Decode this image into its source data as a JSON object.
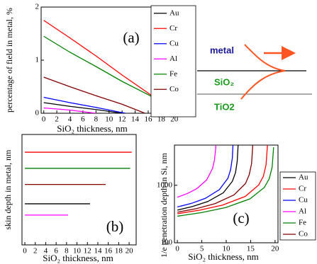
{
  "chart_data": [
    {
      "type": "line",
      "annotation": "(a)",
      "x_label": "SiO₂ thickness, nm",
      "y_label": "percentage of field in metal, %",
      "xlim": [
        -0.4,
        21
      ],
      "ylim": [
        0,
        2
      ],
      "xticks": [
        0,
        2,
        4,
        6,
        8,
        10,
        12,
        14,
        16,
        18,
        20
      ],
      "yticks": [
        0,
        1,
        2
      ],
      "legend": "top-right",
      "series": [
        {
          "name": "Au",
          "color": "#000000",
          "x": [
            0,
            4,
            8,
            12
          ],
          "values": [
            0.2,
            0.13,
            0.07,
            0
          ]
        },
        {
          "name": "Cr",
          "color": "#ff0000",
          "x": [
            0,
            4,
            8,
            12,
            16,
            18,
            20.5
          ],
          "values": [
            1.75,
            1.42,
            1.08,
            0.72,
            0.38,
            0.2,
            0
          ]
        },
        {
          "name": "Cu",
          "color": "#0000ff",
          "x": [
            0,
            4,
            8,
            12.5
          ],
          "values": [
            0.3,
            0.2,
            0.11,
            0
          ]
        },
        {
          "name": "Al",
          "color": "#ff00ff",
          "x": [
            0,
            4,
            8
          ],
          "values": [
            0.1,
            0.06,
            0
          ]
        },
        {
          "name": "Fe",
          "color": "#008000",
          "x": [
            0,
            4,
            8,
            12,
            16,
            18,
            20
          ],
          "values": [
            1.45,
            1.15,
            0.88,
            0.6,
            0.35,
            0.2,
            0
          ]
        },
        {
          "name": "Co",
          "color": "#800000",
          "x": [
            0,
            4,
            8,
            12,
            15.5
          ],
          "values": [
            0.68,
            0.5,
            0.33,
            0.17,
            0
          ]
        }
      ]
    },
    {
      "type": "line",
      "annotation": "(b)",
      "x_label": "SiO₂ thickness, nm",
      "y_label": "skin depth in metal, nm",
      "xlim": [
        -0.55,
        21.35
      ],
      "ylim": [
        -3.5,
        65
      ],
      "xticks": [
        0,
        2,
        4,
        6,
        8,
        10,
        12,
        14,
        16,
        18,
        20
      ],
      "series": [
        {
          "color": "#ff0000",
          "x": [
            0,
            20.5
          ],
          "values": [
            54,
            54
          ]
        },
        {
          "color": "#008000",
          "x": [
            0,
            20.2
          ],
          "values": [
            44,
            44
          ]
        },
        {
          "color": "#800000",
          "x": [
            0,
            15.5
          ],
          "values": [
            34,
            34
          ]
        },
        {
          "color": "#000000",
          "x": [
            0,
            12.5
          ],
          "values": [
            22,
            22
          ]
        },
        {
          "color": "#ff00ff",
          "x": [
            0,
            8.3
          ],
          "values": [
            15,
            15
          ]
        }
      ]
    },
    {
      "type": "line",
      "annotation": "(c)",
      "x_label": "SiO₂ thickness, nm",
      "y_label": "1/e penetration depth in Si, nm",
      "xlim": [
        -0.6,
        20.6
      ],
      "ylim": [
        100,
        5000
      ],
      "log_y": true,
      "xticks": [
        0,
        5,
        10,
        15,
        20
      ],
      "yticks": [
        100,
        1000
      ],
      "legend": "right",
      "series": [
        {
          "name": "Au",
          "color": "#000000",
          "x": [
            0,
            3.1,
            6.25,
            9.4,
            11.25,
            11.9,
            12.25,
            12.45
          ],
          "values": [
            370,
            427,
            523,
            740,
            1170,
            1655,
            2616,
            5240
          ]
        },
        {
          "name": "Cr",
          "color": "#ff0000",
          "x": [
            0,
            4.6,
            9.25,
            13.9,
            16.65,
            17.6,
            18.15,
            18.45
          ],
          "values": [
            320,
            370,
            452,
            640,
            1012,
            1430,
            2262,
            5060
          ]
        },
        {
          "name": "Cu",
          "color": "#0000ff",
          "x": [
            0,
            2.9,
            5.75,
            8.6,
            10.35,
            10.9,
            11.25,
            11.45
          ],
          "values": [
            420,
            485,
            594,
            840,
            1328,
            1877,
            2970,
            6640
          ]
        },
        {
          "name": "Al",
          "color": "#ff00ff",
          "x": [
            0,
            2,
            4,
            6,
            7.2,
            7.6,
            7.85,
            7.97
          ],
          "values": [
            620,
            716,
            877,
            1240,
            1960,
            2770,
            4380,
            9800
          ]
        },
        {
          "name": "Fe",
          "color": "#008000",
          "x": [
            0,
            4.95,
            9.9,
            14.85,
            17.8,
            18.8,
            19.4,
            19.7
          ],
          "values": [
            290,
            335,
            410,
            580,
            917,
            1296,
            2050,
            4580
          ]
        },
        {
          "name": "Co",
          "color": "#800000",
          "x": [
            0,
            3.9,
            7.75,
            11.6,
            13.95,
            14.7,
            15.2,
            15.45
          ],
          "values": [
            340,
            393,
            481,
            680,
            1075,
            1520,
            2404,
            5370
          ]
        }
      ]
    }
  ],
  "diagram": {
    "metal": "metal",
    "spacer": "SiO₂",
    "substrate": "TiO2"
  }
}
